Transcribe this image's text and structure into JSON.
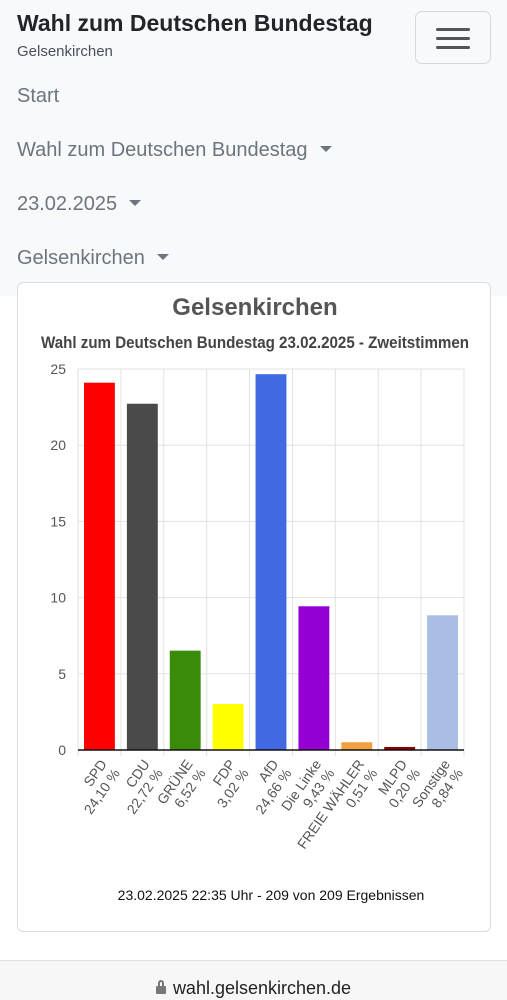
{
  "header": {
    "brand": "Wahl zum Deutschen Bundestag",
    "subtitle": "Gelsenkirchen"
  },
  "nav": {
    "items": [
      {
        "label": "Start"
      },
      {
        "label": "Wahl zum Deutschen Bundestag"
      },
      {
        "label": "23.02.2025"
      },
      {
        "label": "Gelsenkirchen"
      }
    ]
  },
  "chart_data": {
    "type": "bar",
    "title": "Gelsenkirchen",
    "subtitle": "Wahl zum Deutschen Bundestag 23.02.2025  - Zweitstimmen",
    "categories": [
      "SPD",
      "CDU",
      "GRÜNE",
      "FDP",
      "AfD",
      "Die Linke",
      "FREIE WÄHLER",
      "MLPD",
      "Sonstige"
    ],
    "category_labels": [
      "24,10 %",
      "22,72 %",
      "6,52 %",
      "3,02 %",
      "24,66 %",
      "9,43 %",
      "0,51 %",
      "0,20 %",
      "8,84 %"
    ],
    "values": [
      24.1,
      22.72,
      6.52,
      3.02,
      24.66,
      9.43,
      0.51,
      0.2,
      8.84
    ],
    "colors": [
      "#ff0000",
      "#4a4a4a",
      "#3b8b0a",
      "#ffff00",
      "#4169e1",
      "#9400d3",
      "#f0a040",
      "#8b0000",
      "#aabde4"
    ],
    "ylim": [
      0,
      25
    ],
    "yticks": [
      0,
      5,
      10,
      15,
      20,
      25
    ],
    "grid": true,
    "footnote": "23.02.2025 22:35 Uhr - 209 von 209 Ergebnissen"
  },
  "footer": {
    "url": "wahl.gelsenkirchen.de"
  }
}
